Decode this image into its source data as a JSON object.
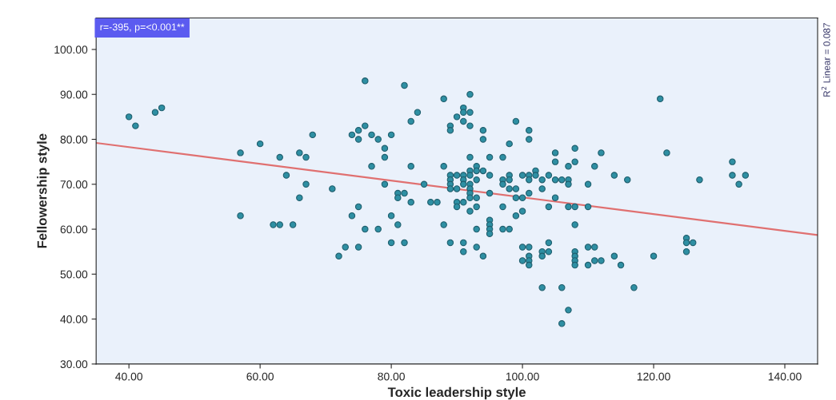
{
  "chart_data": {
    "type": "scatter",
    "xlabel": "Toxic leadership style",
    "ylabel": "Fellowership style",
    "xlim": [
      35,
      145
    ],
    "ylim": [
      30,
      107
    ],
    "xticks": [
      {
        "value": 40,
        "label": "40.00"
      },
      {
        "value": 60,
        "label": "60.00"
      },
      {
        "value": 80,
        "label": "80.00"
      },
      {
        "value": 100,
        "label": "100.00"
      },
      {
        "value": 120,
        "label": "120.00"
      },
      {
        "value": 140,
        "label": "140.00"
      }
    ],
    "yticks": [
      {
        "value": 30,
        "label": "30.00"
      },
      {
        "value": 40,
        "label": "40.00"
      },
      {
        "value": 50,
        "label": "50.00"
      },
      {
        "value": 60,
        "label": "60.00"
      },
      {
        "value": 70,
        "label": "70.00"
      },
      {
        "value": 80,
        "label": "80.00"
      },
      {
        "value": 90,
        "label": "90.00"
      },
      {
        "value": 100,
        "label": "100.00"
      }
    ],
    "grid": false,
    "annotations": [
      "r=-395, p=<0.001**",
      "R$^{2}$ Linear = 0.087"
    ],
    "series": [
      {
        "marker": "circle",
        "color": "#2e8fa3",
        "x": [
          40,
          41,
          44,
          45,
          57,
          57,
          60,
          63,
          64,
          66,
          67,
          68,
          67,
          66,
          62,
          63,
          65,
          71,
          76,
          82,
          88,
          92,
          91,
          91,
          92,
          84,
          90,
          83,
          91,
          76,
          89,
          92,
          75,
          89,
          94,
          74,
          77,
          80,
          75,
          78,
          94,
          79,
          79,
          92,
          95,
          77,
          83,
          88,
          93,
          92,
          93,
          94,
          89,
          90,
          91,
          92,
          95,
          89,
          91,
          93,
          79,
          85,
          89,
          91,
          92,
          89,
          90,
          92,
          81,
          82,
          92,
          95,
          81,
          92,
          93,
          83,
          86,
          87,
          90,
          91,
          75,
          90,
          93,
          92,
          74,
          80,
          95,
          81,
          88,
          95,
          76,
          78,
          93,
          95,
          95,
          80,
          82,
          89,
          91,
          73,
          75,
          93,
          91,
          72,
          94,
          121,
          99,
          101,
          98,
          101,
          97,
          105,
          108,
          112,
          122,
          105,
          108,
          132,
          107,
          111,
          102,
          98,
          100,
          101,
          102,
          104,
          114,
          132,
          134,
          97,
          98,
          101,
          103,
          105,
          106,
          107,
          116,
          127,
          97,
          107,
          110,
          133,
          98,
          99,
          103,
          101,
          99,
          100,
          105,
          97,
          104,
          107,
          108,
          110,
          100,
          99,
          108,
          97,
          98,
          125,
          104,
          125,
          126,
          100,
          101,
          110,
          111,
          103,
          104,
          108,
          125,
          101,
          103,
          108,
          114,
          120,
          100,
          101,
          108,
          111,
          112,
          101,
          108,
          110,
          115,
          103,
          106,
          117,
          107,
          106
        ],
        "values": [
          85,
          83,
          86,
          87,
          77,
          63,
          79,
          76,
          72,
          77,
          76,
          81,
          70,
          67,
          61,
          61,
          61,
          69,
          93,
          92,
          89,
          90,
          87,
          86,
          86,
          86,
          85,
          84,
          84,
          83,
          83,
          83,
          82,
          82,
          82,
          81,
          81,
          81,
          80,
          80,
          80,
          78,
          76,
          76,
          76,
          74,
          74,
          74,
          74,
          73,
          73,
          73,
          72,
          72,
          72,
          72,
          72,
          71,
          71,
          71,
          70,
          70,
          70,
          70,
          70,
          69,
          69,
          69,
          68,
          68,
          68,
          68,
          67,
          67,
          67,
          66,
          66,
          66,
          66,
          66,
          65,
          65,
          65,
          64,
          63,
          63,
          62,
          61,
          61,
          61,
          60,
          60,
          60,
          60,
          59,
          57,
          57,
          57,
          57,
          56,
          56,
          56,
          55,
          54,
          54,
          89,
          84,
          82,
          79,
          80,
          76,
          77,
          78,
          77,
          77,
          75,
          75,
          75,
          74,
          74,
          73,
          72,
          72,
          72,
          72,
          72,
          72,
          72,
          72,
          71,
          71,
          71,
          71,
          71,
          71,
          71,
          71,
          71,
          70,
          70,
          70,
          70,
          69,
          69,
          69,
          68,
          67,
          67,
          67,
          65,
          65,
          65,
          65,
          65,
          64,
          63,
          61,
          60,
          60,
          58,
          57,
          57,
          57,
          56,
          56,
          56,
          56,
          55,
          55,
          55,
          55,
          54,
          54,
          54,
          54,
          54,
          53,
          53,
          53,
          53,
          53,
          52,
          52,
          52,
          52,
          47,
          47,
          47,
          42,
          39
        ]
      },
      {
        "type": "line",
        "color": "#e07070",
        "x": [
          35,
          145
        ],
        "values": [
          79.2,
          58.7
        ]
      }
    ]
  }
}
